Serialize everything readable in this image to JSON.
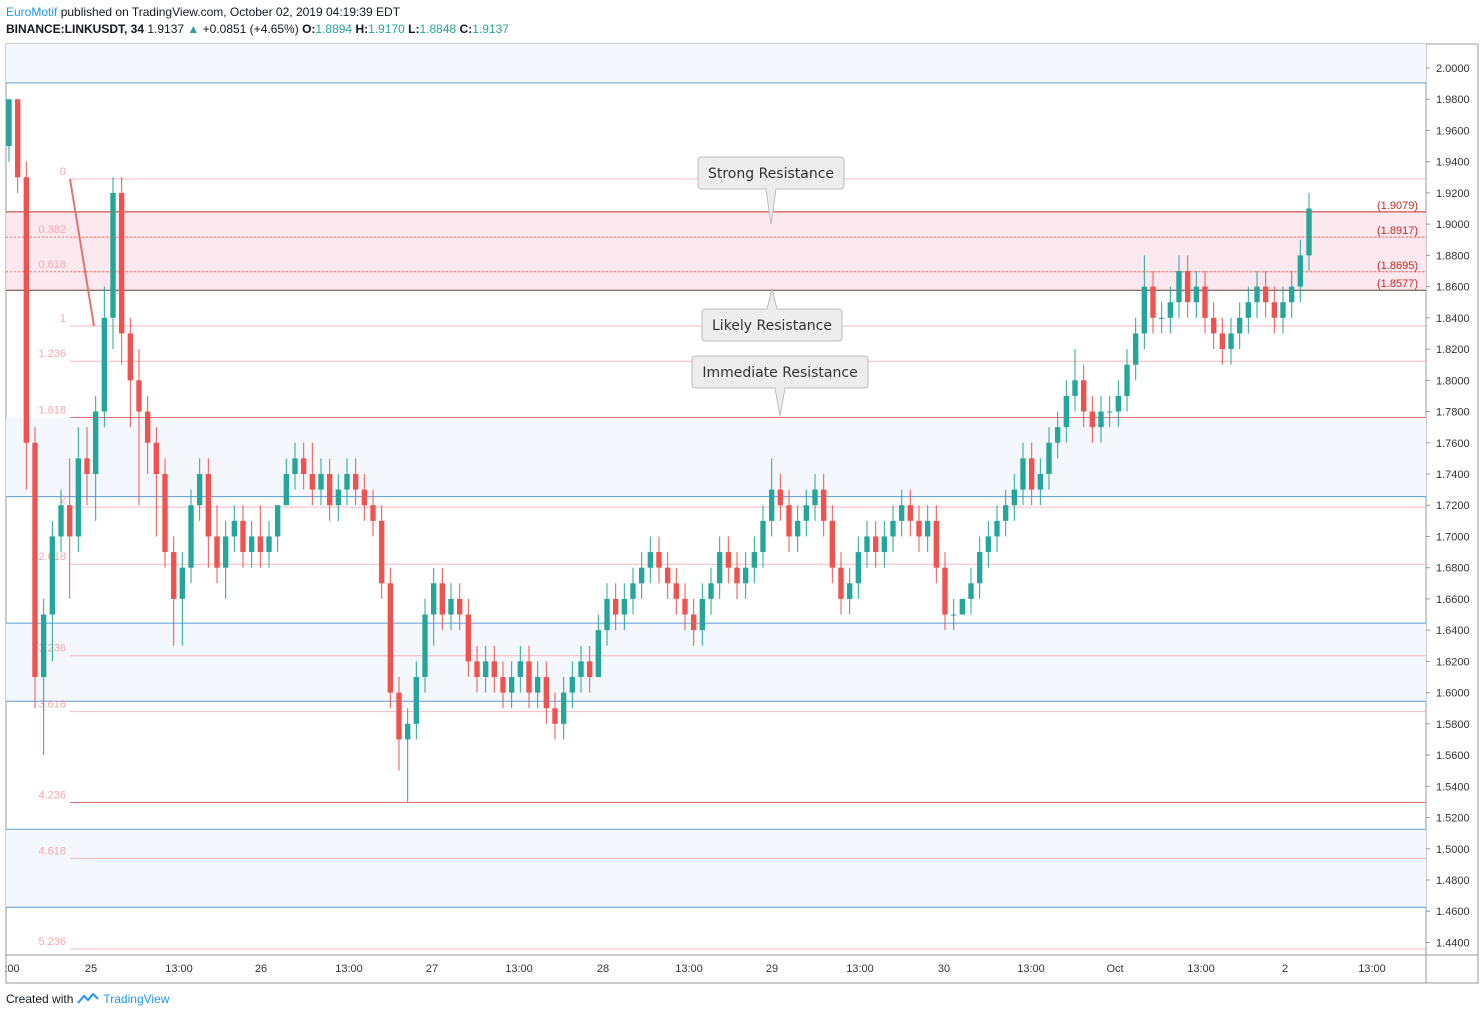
{
  "header": {
    "publisher": "EuroMotif",
    "published_text": " published on TradingView.com, October 02, 2019 04:19:39 EDT",
    "symbol": "BINANCE:LINKUSDT, 34",
    "last": "1.9137",
    "change": "+0.0851 (+4.65%)",
    "o_label": "O:",
    "o_value": "1.8894",
    "h_label": "H:",
    "h_value": "1.9170",
    "l_label": "L:",
    "l_value": "1.8848",
    "c_label": "C:",
    "c_value": "1.9137"
  },
  "footer": {
    "created_with": "Created with",
    "brand": "TradingView"
  },
  "colors": {
    "up": "#26a69a",
    "down": "#ef5350",
    "fib": "#f4a8ad",
    "blue_line": "#5b9bd5",
    "zone": "#f8bbd0"
  },
  "chart_data": {
    "type": "candlestick",
    "title": "",
    "ylim": [
      1.43,
      2.02
    ],
    "y_ticks": [
      "2.0000",
      "1.9800",
      "1.9600",
      "1.9400",
      "1.9200",
      "1.9000",
      "1.8800",
      "1.8600",
      "1.8400",
      "1.8200",
      "1.8000",
      "1.7800",
      "1.7600",
      "1.7400",
      "1.7200",
      "1.7000",
      "1.6800",
      "1.6600",
      "1.6400",
      "1.6200",
      "1.6000",
      "1.5800",
      "1.5600",
      "1.5400",
      "1.5200",
      "1.5000",
      "1.4800",
      "1.4600",
      "1.4400"
    ],
    "x_ticks": [
      ":00",
      "25",
      "13:00",
      "26",
      "13:00",
      "27",
      "13:00",
      "28",
      "13:00",
      "29",
      "13:00",
      "30",
      "13:00",
      "Oct",
      "13:00",
      "2",
      "13:00"
    ],
    "price_labels": [
      {
        "text": "(1.9079)",
        "value": 1.9079
      },
      {
        "text": "(1.8917)",
        "value": 1.8917
      },
      {
        "text": "(1.8695)",
        "value": 1.8695
      },
      {
        "text": "(1.8577)",
        "value": 1.8577
      }
    ],
    "resistance_zone": [
      1.8577,
      1.9079
    ],
    "horizontal_levels": [
      1.9905,
      1.7255,
      1.6445,
      1.5945,
      1.5125,
      1.4625
    ],
    "fib_levels": [
      {
        "label": "0",
        "value": 1.929
      },
      {
        "label": "0.382",
        "value": 1.8917
      },
      {
        "label": "0.618",
        "value": 1.8695
      },
      {
        "label": "1",
        "value": 1.8348
      },
      {
        "label": "1.236",
        "value": 1.8122
      },
      {
        "label": "1.618",
        "value": 1.7762
      },
      {
        "label": "2",
        "value": 1.7188
      },
      {
        "label": "2.618",
        "value": 1.6822
      },
      {
        "label": "3.236",
        "value": 1.6236
      },
      {
        "label": "3.618",
        "value": 1.5878
      },
      {
        "label": "4.236",
        "value": 1.5296
      },
      {
        "label": "4.618",
        "value": 1.4938
      },
      {
        "label": "5.236",
        "value": 1.4358
      }
    ],
    "annotations": [
      {
        "text": "Strong Resistance",
        "value": 1.9
      },
      {
        "text": "Likely Resistance",
        "value": 1.86
      },
      {
        "text": "Immediate Resistance",
        "value": 1.777
      }
    ],
    "trend_line": [
      {
        "value": 1.929
      },
      {
        "value": 1.8348
      }
    ],
    "candles": [
      [
        1.95,
        1.98,
        1.94,
        1.98
      ],
      [
        1.98,
        1.98,
        1.92,
        1.93
      ],
      [
        1.93,
        1.94,
        1.73,
        1.76
      ],
      [
        1.76,
        1.77,
        1.59,
        1.61
      ],
      [
        1.61,
        1.66,
        1.56,
        1.65
      ],
      [
        1.65,
        1.71,
        1.62,
        1.7
      ],
      [
        1.7,
        1.73,
        1.69,
        1.72
      ],
      [
        1.72,
        1.75,
        1.66,
        1.7
      ],
      [
        1.7,
        1.77,
        1.69,
        1.75
      ],
      [
        1.75,
        1.77,
        1.72,
        1.74
      ],
      [
        1.74,
        1.79,
        1.71,
        1.78
      ],
      [
        1.78,
        1.86,
        1.77,
        1.84
      ],
      [
        1.84,
        1.93,
        1.82,
        1.92
      ],
      [
        1.92,
        1.93,
        1.81,
        1.83
      ],
      [
        1.83,
        1.84,
        1.77,
        1.8
      ],
      [
        1.8,
        1.82,
        1.72,
        1.78
      ],
      [
        1.78,
        1.79,
        1.74,
        1.76
      ],
      [
        1.76,
        1.77,
        1.7,
        1.74
      ],
      [
        1.74,
        1.75,
        1.68,
        1.69
      ],
      [
        1.69,
        1.7,
        1.63,
        1.66
      ],
      [
        1.66,
        1.69,
        1.63,
        1.68
      ],
      [
        1.68,
        1.73,
        1.67,
        1.72
      ],
      [
        1.72,
        1.75,
        1.71,
        1.74
      ],
      [
        1.74,
        1.75,
        1.68,
        1.7
      ],
      [
        1.7,
        1.72,
        1.67,
        1.68
      ],
      [
        1.68,
        1.71,
        1.66,
        1.7
      ],
      [
        1.7,
        1.72,
        1.69,
        1.71
      ],
      [
        1.71,
        1.72,
        1.68,
        1.69
      ],
      [
        1.69,
        1.71,
        1.68,
        1.7
      ],
      [
        1.7,
        1.72,
        1.68,
        1.69
      ],
      [
        1.69,
        1.71,
        1.68,
        1.7
      ],
      [
        1.7,
        1.72,
        1.69,
        1.72
      ],
      [
        1.72,
        1.75,
        1.72,
        1.74
      ],
      [
        1.74,
        1.76,
        1.73,
        1.75
      ],
      [
        1.75,
        1.76,
        1.73,
        1.74
      ],
      [
        1.74,
        1.76,
        1.72,
        1.73
      ],
      [
        1.73,
        1.75,
        1.72,
        1.74
      ],
      [
        1.74,
        1.75,
        1.71,
        1.72
      ],
      [
        1.72,
        1.74,
        1.71,
        1.73
      ],
      [
        1.73,
        1.75,
        1.72,
        1.74
      ],
      [
        1.74,
        1.75,
        1.72,
        1.73
      ],
      [
        1.73,
        1.74,
        1.71,
        1.72
      ],
      [
        1.72,
        1.73,
        1.7,
        1.71
      ],
      [
        1.71,
        1.72,
        1.66,
        1.67
      ],
      [
        1.67,
        1.68,
        1.59,
        1.6
      ],
      [
        1.6,
        1.61,
        1.55,
        1.57
      ],
      [
        1.57,
        1.59,
        1.53,
        1.58
      ],
      [
        1.58,
        1.62,
        1.57,
        1.61
      ],
      [
        1.61,
        1.66,
        1.6,
        1.65
      ],
      [
        1.65,
        1.68,
        1.63,
        1.67
      ],
      [
        1.67,
        1.68,
        1.64,
        1.65
      ],
      [
        1.65,
        1.67,
        1.64,
        1.66
      ],
      [
        1.66,
        1.67,
        1.64,
        1.65
      ],
      [
        1.65,
        1.66,
        1.61,
        1.62
      ],
      [
        1.62,
        1.63,
        1.6,
        1.61
      ],
      [
        1.61,
        1.63,
        1.6,
        1.62
      ],
      [
        1.62,
        1.63,
        1.6,
        1.61
      ],
      [
        1.61,
        1.62,
        1.59,
        1.6
      ],
      [
        1.6,
        1.62,
        1.59,
        1.61
      ],
      [
        1.61,
        1.63,
        1.6,
        1.62
      ],
      [
        1.62,
        1.63,
        1.59,
        1.6
      ],
      [
        1.6,
        1.62,
        1.59,
        1.61
      ],
      [
        1.61,
        1.62,
        1.58,
        1.59
      ],
      [
        1.59,
        1.6,
        1.57,
        1.58
      ],
      [
        1.58,
        1.61,
        1.57,
        1.6
      ],
      [
        1.6,
        1.62,
        1.59,
        1.61
      ],
      [
        1.61,
        1.63,
        1.6,
        1.62
      ],
      [
        1.62,
        1.63,
        1.6,
        1.61
      ],
      [
        1.61,
        1.65,
        1.61,
        1.64
      ],
      [
        1.64,
        1.67,
        1.63,
        1.66
      ],
      [
        1.66,
        1.67,
        1.64,
        1.65
      ],
      [
        1.65,
        1.67,
        1.64,
        1.66
      ],
      [
        1.66,
        1.68,
        1.65,
        1.67
      ],
      [
        1.67,
        1.69,
        1.66,
        1.68
      ],
      [
        1.68,
        1.7,
        1.67,
        1.69
      ],
      [
        1.69,
        1.7,
        1.67,
        1.68
      ],
      [
        1.68,
        1.69,
        1.66,
        1.67
      ],
      [
        1.67,
        1.68,
        1.65,
        1.66
      ],
      [
        1.66,
        1.67,
        1.64,
        1.65
      ],
      [
        1.65,
        1.66,
        1.63,
        1.64
      ],
      [
        1.64,
        1.67,
        1.63,
        1.66
      ],
      [
        1.66,
        1.68,
        1.65,
        1.67
      ],
      [
        1.67,
        1.7,
        1.66,
        1.69
      ],
      [
        1.69,
        1.7,
        1.67,
        1.68
      ],
      [
        1.68,
        1.69,
        1.66,
        1.67
      ],
      [
        1.67,
        1.69,
        1.66,
        1.68
      ],
      [
        1.68,
        1.7,
        1.67,
        1.69
      ],
      [
        1.69,
        1.72,
        1.68,
        1.71
      ],
      [
        1.71,
        1.75,
        1.7,
        1.73
      ],
      [
        1.73,
        1.74,
        1.71,
        1.72
      ],
      [
        1.72,
        1.73,
        1.69,
        1.7
      ],
      [
        1.7,
        1.72,
        1.69,
        1.71
      ],
      [
        1.71,
        1.73,
        1.7,
        1.72
      ],
      [
        1.72,
        1.74,
        1.71,
        1.73
      ],
      [
        1.73,
        1.74,
        1.7,
        1.71
      ],
      [
        1.71,
        1.72,
        1.67,
        1.68
      ],
      [
        1.68,
        1.69,
        1.65,
        1.66
      ],
      [
        1.66,
        1.68,
        1.65,
        1.67
      ],
      [
        1.67,
        1.7,
        1.66,
        1.69
      ],
      [
        1.69,
        1.71,
        1.68,
        1.7
      ],
      [
        1.7,
        1.71,
        1.68,
        1.69
      ],
      [
        1.69,
        1.71,
        1.68,
        1.7
      ],
      [
        1.7,
        1.72,
        1.69,
        1.71
      ],
      [
        1.71,
        1.73,
        1.7,
        1.72
      ],
      [
        1.72,
        1.73,
        1.7,
        1.71
      ],
      [
        1.71,
        1.72,
        1.69,
        1.7
      ],
      [
        1.7,
        1.72,
        1.69,
        1.71
      ],
      [
        1.71,
        1.72,
        1.67,
        1.68
      ],
      [
        1.68,
        1.69,
        1.64,
        1.65
      ],
      [
        1.65,
        1.66,
        1.64,
        1.65
      ],
      [
        1.65,
        1.66,
        1.65,
        1.66
      ],
      [
        1.66,
        1.68,
        1.65,
        1.67
      ],
      [
        1.67,
        1.7,
        1.66,
        1.69
      ],
      [
        1.69,
        1.71,
        1.68,
        1.7
      ],
      [
        1.7,
        1.72,
        1.69,
        1.71
      ],
      [
        1.71,
        1.73,
        1.7,
        1.72
      ],
      [
        1.72,
        1.74,
        1.71,
        1.73
      ],
      [
        1.73,
        1.76,
        1.72,
        1.75
      ],
      [
        1.75,
        1.76,
        1.72,
        1.73
      ],
      [
        1.73,
        1.75,
        1.72,
        1.74
      ],
      [
        1.74,
        1.77,
        1.73,
        1.76
      ],
      [
        1.76,
        1.78,
        1.75,
        1.77
      ],
      [
        1.77,
        1.8,
        1.76,
        1.79
      ],
      [
        1.79,
        1.82,
        1.78,
        1.8
      ],
      [
        1.8,
        1.81,
        1.77,
        1.78
      ],
      [
        1.78,
        1.79,
        1.76,
        1.77
      ],
      [
        1.77,
        1.79,
        1.76,
        1.78
      ],
      [
        1.78,
        1.79,
        1.77,
        1.78
      ],
      [
        1.78,
        1.8,
        1.77,
        1.79
      ],
      [
        1.79,
        1.82,
        1.78,
        1.81
      ],
      [
        1.81,
        1.84,
        1.8,
        1.83
      ],
      [
        1.83,
        1.88,
        1.82,
        1.86
      ],
      [
        1.86,
        1.87,
        1.83,
        1.84
      ],
      [
        1.84,
        1.85,
        1.83,
        1.84
      ],
      [
        1.84,
        1.86,
        1.83,
        1.85
      ],
      [
        1.85,
        1.88,
        1.84,
        1.87
      ],
      [
        1.87,
        1.88,
        1.84,
        1.85
      ],
      [
        1.85,
        1.87,
        1.84,
        1.86
      ],
      [
        1.86,
        1.87,
        1.83,
        1.84
      ],
      [
        1.84,
        1.85,
        1.82,
        1.83
      ],
      [
        1.83,
        1.84,
        1.81,
        1.82
      ],
      [
        1.82,
        1.84,
        1.81,
        1.83
      ],
      [
        1.83,
        1.85,
        1.82,
        1.84
      ],
      [
        1.84,
        1.86,
        1.83,
        1.85
      ],
      [
        1.85,
        1.87,
        1.84,
        1.86
      ],
      [
        1.86,
        1.87,
        1.84,
        1.85
      ],
      [
        1.85,
        1.86,
        1.83,
        1.84
      ],
      [
        1.84,
        1.86,
        1.83,
        1.85
      ],
      [
        1.85,
        1.87,
        1.84,
        1.86
      ],
      [
        1.86,
        1.89,
        1.85,
        1.88
      ],
      [
        1.88,
        1.92,
        1.87,
        1.91
      ]
    ]
  }
}
